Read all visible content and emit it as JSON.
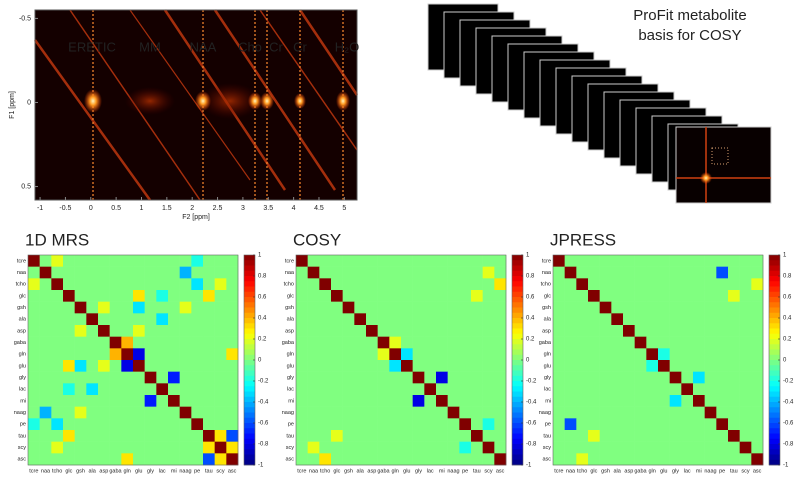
{
  "inset_label": [
    "ProFit metabolite",
    "basis for COSY"
  ],
  "chart_data": [
    {
      "type": "spectrum",
      "xlabel": "F2 [ppm]",
      "ylabel": "F1 [ppm]",
      "xlim": [
        -1.1,
        5.25
      ],
      "ylim": [
        -0.55,
        0.58
      ],
      "xticks": [
        -1,
        -0.5,
        0,
        0.5,
        1,
        1.5,
        2,
        2.5,
        3,
        3.5,
        4,
        4.5,
        5
      ],
      "yticks": [
        -0.5,
        0,
        0.5
      ],
      "annotations": [
        "ERETIC",
        "MM",
        "NAA",
        "Cho",
        "Cr",
        "Cr",
        "H₂O"
      ]
    },
    {
      "type": "heatmap",
      "title": "1D MRS",
      "clim": [
        -1,
        1
      ],
      "cticks": [
        1,
        0.8,
        0.6,
        0.4,
        0.2,
        0,
        -0.2,
        -0.4,
        -0.6,
        -0.8,
        -1
      ],
      "categories": [
        "tcre",
        "naa",
        "tcho",
        "glc",
        "gsh",
        "ala",
        "asp",
        "gaba",
        "gln",
        "glu",
        "gly",
        "lac",
        "mi",
        "naag",
        "pe",
        "tau",
        "scy",
        "asc"
      ],
      "values": [
        [
          1,
          0,
          0.2,
          0,
          0,
          0,
          0,
          0,
          0,
          0,
          0,
          0,
          0,
          0,
          -0.2,
          0,
          0,
          0
        ],
        [
          0,
          1,
          0,
          0,
          0,
          0,
          0,
          0,
          0,
          0,
          0,
          0,
          0,
          -0.4,
          0,
          0,
          0,
          0
        ],
        [
          0.2,
          0,
          1,
          0,
          0,
          0,
          0,
          0,
          0,
          0,
          0,
          0,
          0,
          0,
          -0.3,
          0,
          0.2,
          0
        ],
        [
          0,
          0,
          0,
          1,
          0,
          0,
          0,
          0,
          0,
          0.3,
          0,
          -0.2,
          0,
          0,
          0,
          0.3,
          0,
          0
        ],
        [
          0,
          0,
          0,
          0,
          1,
          0,
          0.2,
          0,
          0,
          -0.3,
          0,
          0,
          0,
          0.2,
          0,
          0,
          0,
          0
        ],
        [
          0,
          0,
          0,
          0,
          0,
          1,
          0,
          0,
          0,
          0,
          0,
          -0.3,
          0,
          0,
          0,
          0,
          0,
          0
        ],
        [
          0,
          0,
          0,
          0,
          0.2,
          0,
          1,
          0,
          0,
          0.2,
          0,
          0,
          0,
          0,
          0,
          0,
          0,
          0
        ],
        [
          0,
          0,
          0,
          0,
          0,
          0,
          0,
          1,
          0.4,
          0,
          0,
          0,
          0,
          0,
          0,
          0,
          0,
          0
        ],
        [
          0,
          0,
          0,
          0,
          0,
          0,
          0,
          0.4,
          1,
          -0.8,
          0,
          0,
          0,
          0,
          0,
          0,
          0,
          0.3
        ],
        [
          0,
          0,
          0,
          0.3,
          -0.3,
          0,
          0.2,
          0,
          -0.8,
          1,
          0,
          0,
          0,
          0,
          0,
          0,
          0,
          0
        ],
        [
          0,
          0,
          0,
          0,
          0,
          0,
          0,
          0,
          0,
          0,
          1,
          0,
          -0.7,
          0,
          0,
          0,
          0,
          0
        ],
        [
          0,
          0,
          0,
          -0.2,
          0,
          -0.3,
          0,
          0,
          0,
          0,
          0,
          1,
          0,
          0,
          0,
          0,
          0,
          0
        ],
        [
          0,
          0,
          0,
          0,
          0,
          0,
          0,
          0,
          0,
          0,
          -0.7,
          0,
          1,
          0,
          0,
          0,
          0,
          0
        ],
        [
          0,
          -0.4,
          0,
          0,
          0.2,
          0,
          0,
          0,
          0,
          0,
          0,
          0,
          0,
          1,
          0,
          0,
          0,
          0
        ],
        [
          -0.2,
          0,
          -0.3,
          0,
          0,
          0,
          0,
          0,
          0,
          0,
          0,
          0,
          0,
          0,
          1,
          0,
          0,
          0
        ],
        [
          0,
          0,
          0,
          0.3,
          0,
          0,
          0,
          0,
          0,
          0,
          0,
          0,
          0,
          0,
          0,
          1,
          0.3,
          -0.6
        ],
        [
          0,
          0,
          0.2,
          0,
          0,
          0,
          0,
          0,
          0,
          0,
          0,
          0,
          0,
          0,
          0,
          0.3,
          1,
          0.3
        ],
        [
          0,
          0,
          0,
          0,
          0,
          0,
          0,
          0,
          0.3,
          0,
          0,
          0,
          0,
          0,
          0,
          -0.6,
          0.3,
          1
        ]
      ]
    },
    {
      "type": "heatmap",
      "title": "COSY",
      "clim": [
        -1,
        1
      ],
      "cticks": [
        1,
        0.8,
        0.6,
        0.4,
        0.2,
        0,
        -0.2,
        -0.4,
        -0.6,
        -0.8,
        -1
      ],
      "categories": [
        "tcre",
        "naa",
        "tcho",
        "glc",
        "gsh",
        "ala",
        "asp",
        "gaba",
        "gln",
        "glu",
        "gly",
        "lac",
        "mi",
        "naag",
        "pe",
        "tau",
        "scy",
        "asc"
      ],
      "values": [
        [
          1,
          0,
          0,
          0,
          0,
          0,
          0,
          0,
          0,
          0,
          0,
          0,
          0,
          0,
          0,
          0,
          0,
          0
        ],
        [
          0,
          1,
          0,
          0,
          0,
          0,
          0,
          0,
          0,
          0,
          0,
          0,
          0,
          0,
          0,
          0,
          0.2,
          0
        ],
        [
          0,
          0,
          1,
          0,
          0,
          0,
          0,
          0,
          0,
          0,
          0,
          0,
          0,
          0,
          0,
          0,
          0,
          0.3
        ],
        [
          0,
          0,
          0,
          1,
          0,
          0,
          0,
          0,
          0,
          0,
          0,
          0,
          0,
          0,
          0,
          0.2,
          0,
          0
        ],
        [
          0,
          0,
          0,
          0,
          1,
          0,
          0,
          0,
          0,
          0,
          0,
          0,
          0,
          0,
          0,
          0,
          0,
          0
        ],
        [
          0,
          0,
          0,
          0,
          0,
          1,
          0,
          0,
          0,
          0,
          0,
          0,
          0,
          0,
          0,
          0,
          0,
          0
        ],
        [
          0,
          0,
          0,
          0,
          0,
          0,
          1,
          0,
          0,
          0,
          0,
          0,
          0,
          0,
          0,
          0,
          0,
          0
        ],
        [
          0,
          0,
          0,
          0,
          0,
          0,
          0,
          1,
          0.2,
          0,
          0,
          0,
          0,
          0,
          0,
          0,
          0,
          0
        ],
        [
          0,
          0,
          0,
          0,
          0,
          0,
          0,
          0.2,
          1,
          -0.3,
          0,
          0,
          0,
          0,
          0,
          0,
          0,
          0
        ],
        [
          0,
          0,
          0,
          0,
          0,
          0,
          0,
          0,
          -0.3,
          1,
          0,
          0,
          0,
          0,
          0,
          0,
          0,
          0
        ],
        [
          0,
          0,
          0,
          0,
          0,
          0,
          0,
          0,
          0,
          0,
          1,
          0,
          -0.8,
          0,
          0,
          0,
          0,
          0
        ],
        [
          0,
          0,
          0,
          0,
          0,
          0,
          0,
          0,
          0,
          0,
          0,
          1,
          0,
          0,
          0,
          0,
          0,
          0
        ],
        [
          0,
          0,
          0,
          0,
          0,
          0,
          0,
          0,
          0,
          0,
          -0.8,
          0,
          1,
          0,
          0,
          0,
          0,
          0
        ],
        [
          0,
          0,
          0,
          0,
          0,
          0,
          0,
          0,
          0,
          0,
          0,
          0,
          0,
          1,
          0,
          0,
          0,
          0
        ],
        [
          0,
          0,
          0,
          0,
          0,
          0,
          0,
          0,
          0,
          0,
          0,
          0,
          0,
          0,
          1,
          0,
          -0.2,
          0
        ],
        [
          0,
          0,
          0,
          0.2,
          0,
          0,
          0,
          0,
          0,
          0,
          0,
          0,
          0,
          0,
          0,
          1,
          0,
          0
        ],
        [
          0,
          0.2,
          0,
          0,
          0,
          0,
          0,
          0,
          0,
          0,
          0,
          0,
          0,
          0,
          -0.2,
          0,
          1,
          0
        ],
        [
          0,
          0,
          0.3,
          0,
          0,
          0,
          0,
          0,
          0,
          0,
          0,
          0,
          0,
          0,
          0,
          0,
          0,
          1
        ]
      ]
    },
    {
      "type": "heatmap",
      "title": "JPRESS",
      "clim": [
        -1,
        1
      ],
      "cticks": [
        1,
        0.8,
        0.6,
        0.4,
        0.2,
        0,
        -0.2,
        -0.4,
        -0.6,
        -0.8,
        -1
      ],
      "categories": [
        "tcre",
        "naa",
        "tcho",
        "glc",
        "gsh",
        "ala",
        "asp",
        "gaba",
        "gln",
        "glu",
        "gly",
        "lac",
        "mi",
        "naag",
        "pe",
        "tau",
        "scy",
        "asc"
      ],
      "values": [
        [
          1,
          0,
          0,
          0,
          0,
          0,
          0,
          0,
          0,
          0,
          0,
          0,
          0,
          0,
          0,
          0,
          0,
          0
        ],
        [
          0,
          1,
          0,
          0,
          0,
          0,
          0,
          0,
          0,
          0,
          0,
          0,
          0,
          0,
          -0.6,
          0,
          0,
          0
        ],
        [
          0,
          0,
          1,
          0,
          0,
          0,
          0,
          0,
          0,
          0,
          0,
          0,
          0,
          0,
          0,
          0,
          0,
          0.2
        ],
        [
          0,
          0,
          0,
          1,
          0,
          0,
          0,
          0,
          0,
          0,
          0,
          0,
          0,
          0,
          0,
          0.2,
          0,
          0
        ],
        [
          0,
          0,
          0,
          0,
          1,
          0,
          0,
          0,
          0,
          0,
          0,
          0,
          0,
          0,
          0,
          0,
          0,
          0
        ],
        [
          0,
          0,
          0,
          0,
          0,
          1,
          0,
          0,
          0,
          0,
          0,
          0,
          0,
          0,
          0,
          0,
          0,
          0
        ],
        [
          0,
          0,
          0,
          0,
          0,
          0,
          1,
          0,
          0,
          0,
          0,
          0,
          0,
          0,
          0,
          0,
          0,
          0
        ],
        [
          0,
          0,
          0,
          0,
          0,
          0,
          0,
          1,
          0,
          0,
          0,
          0,
          0,
          0,
          0,
          0,
          0,
          0
        ],
        [
          0,
          0,
          0,
          0,
          0,
          0,
          0,
          0,
          1,
          -0.2,
          0,
          0,
          0,
          0,
          0,
          0,
          0,
          0
        ],
        [
          0,
          0,
          0,
          0,
          0,
          0,
          0,
          0,
          -0.2,
          1,
          0,
          0,
          0,
          0,
          0,
          0,
          0,
          0
        ],
        [
          0,
          0,
          0,
          0,
          0,
          0,
          0,
          0,
          0,
          0,
          1,
          0,
          -0.3,
          0,
          0,
          0,
          0,
          0
        ],
        [
          0,
          0,
          0,
          0,
          0,
          0,
          0,
          0,
          0,
          0,
          0,
          1,
          0,
          0,
          0,
          0,
          0,
          0
        ],
        [
          0,
          0,
          0,
          0,
          0,
          0,
          0,
          0,
          0,
          0,
          -0.3,
          0,
          1,
          0,
          0,
          0,
          0,
          0
        ],
        [
          0,
          0,
          0,
          0,
          0,
          0,
          0,
          0,
          0,
          0,
          0,
          0,
          0,
          1,
          0,
          0,
          0,
          0
        ],
        [
          0,
          -0.6,
          0,
          0,
          0,
          0,
          0,
          0,
          0,
          0,
          0,
          0,
          0,
          0,
          1,
          0,
          0,
          0
        ],
        [
          0,
          0,
          0,
          0.2,
          0,
          0,
          0,
          0,
          0,
          0,
          0,
          0,
          0,
          0,
          0,
          1,
          0,
          0
        ],
        [
          0,
          0,
          0,
          0,
          0,
          0,
          0,
          0,
          0,
          0,
          0,
          0,
          0,
          0,
          0,
          0,
          1,
          0
        ],
        [
          0,
          0,
          0.2,
          0,
          0,
          0,
          0,
          0,
          0,
          0,
          0,
          0,
          0,
          0,
          0,
          0,
          0,
          1
        ]
      ]
    }
  ]
}
